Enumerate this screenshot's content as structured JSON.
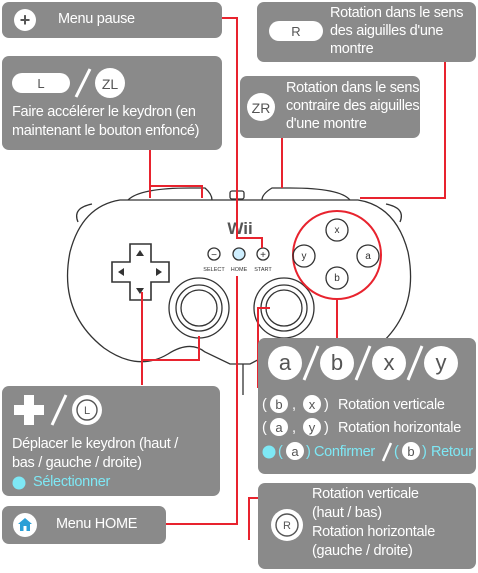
{
  "controller": {
    "brand": "Wii",
    "select_label": "SELECT",
    "home_label": "HOME",
    "start_label": "START",
    "minus_glyph": "−",
    "plus_glyph": "+",
    "x_glyph": "x",
    "y_glyph": "y",
    "a_glyph": "a",
    "b_glyph": "b"
  },
  "pause": {
    "plus_glyph": "+",
    "label": "Menu pause"
  },
  "r_button": {
    "glyph": "R",
    "line1": "Rotation dans le sens",
    "line2": "des aiguilles d'une",
    "line3": "montre"
  },
  "zr_button": {
    "glyph": "ZR",
    "line1": "Rotation dans le sens",
    "line2": "contraire des aiguilles",
    "line3": "d'une montre"
  },
  "l_zl": {
    "l_glyph": "L",
    "zl_glyph": "ZL",
    "line1": "Faire accélérer le keydron (en",
    "line2": "maintenant le bouton enfoncé)"
  },
  "face_buttons": {
    "a": "a",
    "b": "b",
    "x": "x",
    "y": "y",
    "comma": ",",
    "paren_open": "(",
    "paren_close": ")",
    "vertical_label": "Rotation verticale",
    "horizontal_label": "Rotation horizontale",
    "confirm_label": "Confirmer",
    "back_label": "Retour"
  },
  "dpad_stick": {
    "l_stick_glyph": "L",
    "line1": "Déplacer le keydron (haut /",
    "line2": "bas / gauche / droite)",
    "select_label": "Sélectionner"
  },
  "home": {
    "label": "Menu HOME"
  },
  "r_stick": {
    "glyph": "R",
    "line1": "Rotation verticale",
    "line2": "(haut / bas)",
    "line3": "Rotation horizontale",
    "line4": "(gauche / droite)"
  },
  "colors": {
    "box": "#8a8a8a",
    "leader_line": "#e8232e",
    "highlight": "#7ee8f5"
  }
}
